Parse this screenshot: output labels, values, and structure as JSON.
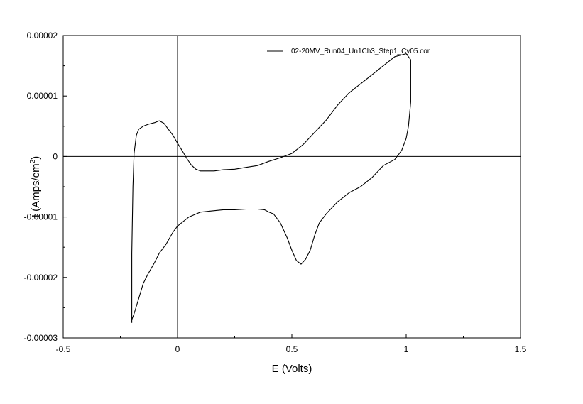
{
  "chart_data": {
    "type": "line",
    "title": "",
    "xlabel": "E (Volts)",
    "ylabel": "I (Amps/cm",
    "ylabel_superscript": "2",
    "ylabel_close": ")",
    "xlim": [
      -0.5,
      1.5
    ],
    "ylim": [
      -3e-05,
      2e-05
    ],
    "x_ticks": [
      -0.5,
      0,
      0.5,
      1,
      1.5
    ],
    "x_tick_labels": [
      "-0.5",
      "0",
      "0.5",
      "1",
      "1.5"
    ],
    "y_ticks": [
      2e-05,
      1e-05,
      0,
      -1e-05,
      -2e-05,
      -3e-05
    ],
    "y_tick_labels": [
      "0.00002",
      "0.00001",
      "0",
      "-0.00001",
      "-0.00002",
      "-0.00003"
    ],
    "grid": false,
    "zero_lines": true,
    "legend_position": "top-right",
    "series": [
      {
        "name": "02-20MV_Run04_Un1Ch3_Step1_Cy05.cor",
        "color": "#000000",
        "x": [
          -0.2,
          -0.2,
          -0.195,
          -0.19,
          -0.18,
          -0.17,
          -0.15,
          -0.13,
          -0.1,
          -0.08,
          -0.06,
          -0.04,
          -0.02,
          0.0,
          0.02,
          0.04,
          0.06,
          0.08,
          0.1,
          0.13,
          0.16,
          0.2,
          0.25,
          0.3,
          0.35,
          0.4,
          0.45,
          0.5,
          0.55,
          0.6,
          0.65,
          0.7,
          0.75,
          0.8,
          0.85,
          0.9,
          0.95,
          1.0,
          1.02,
          1.02,
          1.01,
          1.0,
          0.98,
          0.95,
          0.9,
          0.85,
          0.8,
          0.75,
          0.7,
          0.65,
          0.62,
          0.6,
          0.58,
          0.56,
          0.54,
          0.52,
          0.5,
          0.48,
          0.45,
          0.42,
          0.4,
          0.38,
          0.35,
          0.3,
          0.25,
          0.2,
          0.15,
          0.1,
          0.05,
          0.0,
          -0.02,
          -0.05,
          -0.08,
          -0.1,
          -0.13,
          -0.15,
          -0.17,
          -0.19,
          -0.2
        ],
        "y": [
          -2.75e-05,
          -1.6e-05,
          -5e-06,
          5e-07,
          3.5e-06,
          4.5e-06,
          5e-06,
          5.3e-06,
          5.6e-06,
          5.9e-06,
          5.5e-06,
          4.5e-06,
          3.5e-06,
          2.2e-06,
          1e-06,
          -3e-07,
          -1.4e-06,
          -2.1e-06,
          -2.4e-06,
          -2.4e-06,
          -2.4e-06,
          -2.2e-06,
          -2.1e-06,
          -1.8e-06,
          -1.5e-06,
          -8e-07,
          -2e-07,
          5e-07,
          2e-06,
          4e-06,
          6e-06,
          8.5e-06,
          1.05e-05,
          1.2e-05,
          1.35e-05,
          1.5e-05,
          1.65e-05,
          1.7e-05,
          1.6e-05,
          9e-06,
          5e-06,
          3e-06,
          1e-06,
          -5e-07,
          -1.5e-06,
          -3.5e-06,
          -5e-06,
          -6e-06,
          -7.5e-06,
          -9.5e-06,
          -1.1e-05,
          -1.3e-05,
          -1.55e-05,
          -1.7e-05,
          -1.78e-05,
          -1.72e-05,
          -1.55e-05,
          -1.35e-05,
          -1.1e-05,
          -9.5e-06,
          -9.2e-06,
          -8.8e-06,
          -8.7e-06,
          -8.7e-06,
          -8.8e-06,
          -8.8e-06,
          -9e-06,
          -9.2e-06,
          -1e-05,
          -1.15e-05,
          -1.25e-05,
          -1.45e-05,
          -1.6e-05,
          -1.75e-05,
          -1.95e-05,
          -2.1e-05,
          -2.35e-05,
          -2.6e-05,
          -2.7e-05
        ]
      }
    ]
  }
}
